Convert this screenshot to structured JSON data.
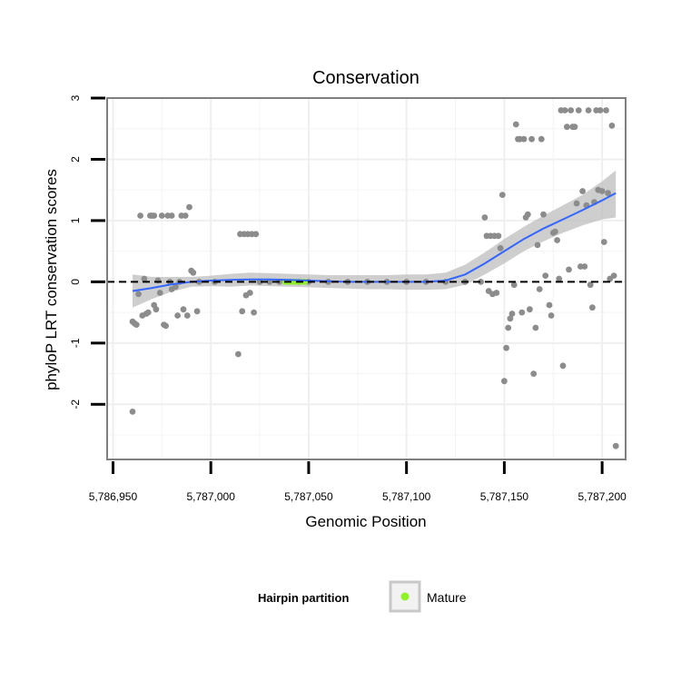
{
  "chart_data": {
    "type": "scatter",
    "title": "Conservation",
    "xlabel": "Genomic Position",
    "ylabel": "phyloP LRT conservation scores",
    "xlim": [
      5786947,
      5787212
    ],
    "ylim": [
      -2.9,
      3.0
    ],
    "x_ticks": [
      {
        "value": 5786950,
        "label": "5,786,950"
      },
      {
        "value": 5787000,
        "label": "5,787,000"
      },
      {
        "value": 5787050,
        "label": "5,787,050"
      },
      {
        "value": 5787100,
        "label": "5,787,100"
      },
      {
        "value": 5787150,
        "label": "5,787,150"
      },
      {
        "value": 5787200,
        "label": "5,787,200"
      }
    ],
    "y_ticks": [
      {
        "value": 3,
        "label": "3"
      },
      {
        "value": 2,
        "label": "2"
      },
      {
        "value": 1,
        "label": "1"
      },
      {
        "value": 0,
        "label": "0"
      },
      {
        "value": -1,
        "label": "-1"
      },
      {
        "value": -2,
        "label": "-2"
      }
    ],
    "reference_line": {
      "y": 0,
      "style": "dashed"
    },
    "points": [
      [
        5786960,
        -2.12
      ],
      [
        5786960,
        -0.65
      ],
      [
        5786961,
        -0.68
      ],
      [
        5786962,
        -0.7
      ],
      [
        5786963,
        -0.2
      ],
      [
        5786964,
        1.08
      ],
      [
        5786965,
        -0.55
      ],
      [
        5786966,
        0.05
      ],
      [
        5786967,
        -0.52
      ],
      [
        5786968,
        -0.5
      ],
      [
        5786969,
        1.08
      ],
      [
        5786970,
        1.08
      ],
      [
        5786971,
        -0.38
      ],
      [
        5786971,
        1.08
      ],
      [
        5786972,
        -0.45
      ],
      [
        5786973,
        0.02
      ],
      [
        5786974,
        -0.18
      ],
      [
        5786975,
        1.08
      ],
      [
        5786976,
        -0.7
      ],
      [
        5786977,
        -0.72
      ],
      [
        5786978,
        1.08
      ],
      [
        5786979,
        0.0
      ],
      [
        5786980,
        -0.12
      ],
      [
        5786980,
        1.08
      ],
      [
        5786982,
        -0.08
      ],
      [
        5786983,
        -0.55
      ],
      [
        5786984,
        0.0
      ],
      [
        5786985,
        1.08
      ],
      [
        5786986,
        -0.45
      ],
      [
        5786987,
        1.08
      ],
      [
        5786988,
        -0.55
      ],
      [
        5786989,
        1.22
      ],
      [
        5786990,
        0.18
      ],
      [
        5786991,
        0.15
      ],
      [
        5786993,
        -0.48
      ],
      [
        5786994,
        0.0
      ],
      [
        5787002,
        0.0
      ],
      [
        5787014,
        -1.18
      ],
      [
        5787015,
        0.78
      ],
      [
        5787016,
        -0.48
      ],
      [
        5787017,
        0.78
      ],
      [
        5787018,
        -0.22
      ],
      [
        5787019,
        0.78
      ],
      [
        5787020,
        -0.18
      ],
      [
        5787021,
        0.78
      ],
      [
        5787022,
        -0.5
      ],
      [
        5787023,
        0.78
      ],
      [
        5787025,
        0.0
      ],
      [
        5787030,
        0.0
      ],
      [
        5787035,
        0.0
      ],
      [
        5787040,
        0.0
      ],
      [
        5787045,
        0.0
      ],
      [
        5787050,
        0.0
      ],
      [
        5787060,
        0.0
      ],
      [
        5787070,
        0.0
      ],
      [
        5787080,
        0.0
      ],
      [
        5787090,
        0.0
      ],
      [
        5787100,
        0.0
      ],
      [
        5787110,
        0.0
      ],
      [
        5787120,
        0.0
      ],
      [
        5787130,
        0.0
      ],
      [
        5787138,
        0.0
      ],
      [
        5787140,
        1.05
      ],
      [
        5787141,
        0.75
      ],
      [
        5787142,
        -0.15
      ],
      [
        5787143,
        0.75
      ],
      [
        5787144,
        -0.2
      ],
      [
        5787145,
        0.75
      ],
      [
        5787146,
        -0.18
      ],
      [
        5787147,
        0.75
      ],
      [
        5787148,
        0.55
      ],
      [
        5787149,
        1.42
      ],
      [
        5787150,
        -1.62
      ],
      [
        5787151,
        -1.08
      ],
      [
        5787152,
        -0.75
      ],
      [
        5787153,
        -0.6
      ],
      [
        5787154,
        -0.52
      ],
      [
        5787155,
        -0.05
      ],
      [
        5787156,
        2.57
      ],
      [
        5787157,
        2.33
      ],
      [
        5787158,
        2.33
      ],
      [
        5787159,
        -0.5
      ],
      [
        5787160,
        2.33
      ],
      [
        5787161,
        1.05
      ],
      [
        5787162,
        1.1
      ],
      [
        5787163,
        -0.45
      ],
      [
        5787164,
        2.33
      ],
      [
        5787165,
        -1.5
      ],
      [
        5787166,
        -0.75
      ],
      [
        5787167,
        0.6
      ],
      [
        5787168,
        -0.12
      ],
      [
        5787169,
        2.33
      ],
      [
        5787170,
        1.1
      ],
      [
        5787171,
        0.1
      ],
      [
        5787173,
        -0.38
      ],
      [
        5787174,
        -0.55
      ],
      [
        5787175,
        0.8
      ],
      [
        5787176,
        0.82
      ],
      [
        5787177,
        0.68
      ],
      [
        5787178,
        0.05
      ],
      [
        5787179,
        2.8
      ],
      [
        5787180,
        -1.37
      ],
      [
        5787181,
        2.8
      ],
      [
        5787182,
        2.53
      ],
      [
        5787183,
        0.2
      ],
      [
        5787184,
        2.8
      ],
      [
        5787185,
        2.53
      ],
      [
        5787186,
        2.53
      ],
      [
        5787187,
        1.28
      ],
      [
        5787188,
        2.8
      ],
      [
        5787189,
        0.25
      ],
      [
        5787190,
        1.48
      ],
      [
        5787191,
        0.25
      ],
      [
        5787192,
        1.25
      ],
      [
        5787193,
        2.8
      ],
      [
        5787194,
        -0.05
      ],
      [
        5787195,
        -0.42
      ],
      [
        5787196,
        1.3
      ],
      [
        5787197,
        2.8
      ],
      [
        5787198,
        1.5
      ],
      [
        5787199,
        2.8
      ],
      [
        5787200,
        1.48
      ],
      [
        5787201,
        0.65
      ],
      [
        5787202,
        2.8
      ],
      [
        5787203,
        1.45
      ],
      [
        5787204,
        0.05
      ],
      [
        5787205,
        2.55
      ],
      [
        5787206,
        0.1
      ],
      [
        5787207,
        -2.68
      ]
    ],
    "mature_points": [
      [
        5787038,
        0.0
      ],
      [
        5787040,
        0.0
      ],
      [
        5787042,
        0.0
      ],
      [
        5787044,
        0.0
      ],
      [
        5787046,
        0.0
      ],
      [
        5787048,
        0.0
      ]
    ],
    "smooth": {
      "x": [
        5786960,
        5786970,
        5786980,
        5786990,
        5787000,
        5787010,
        5787020,
        5787030,
        5787040,
        5787050,
        5787060,
        5787070,
        5787080,
        5787090,
        5787100,
        5787110,
        5787120,
        5787130,
        5787140,
        5787150,
        5787160,
        5787170,
        5787180,
        5787190,
        5787200,
        5787207
      ],
      "y": [
        -0.15,
        -0.1,
        -0.04,
        0.0,
        0.02,
        0.03,
        0.04,
        0.04,
        0.03,
        0.02,
        0.01,
        0.0,
        0.0,
        0.0,
        0.0,
        0.0,
        0.02,
        0.12,
        0.3,
        0.5,
        0.7,
        0.87,
        1.02,
        1.17,
        1.33,
        1.45
      ],
      "lower": [
        -0.42,
        -0.28,
        -0.16,
        -0.08,
        -0.07,
        -0.08,
        -0.06,
        -0.07,
        -0.08,
        -0.09,
        -0.1,
        -0.11,
        -0.12,
        -0.12,
        -0.13,
        -0.13,
        -0.12,
        -0.05,
        0.12,
        0.3,
        0.5,
        0.66,
        0.8,
        0.92,
        1.02,
        1.05
      ],
      "upper": [
        0.12,
        0.08,
        0.08,
        0.08,
        0.1,
        0.13,
        0.15,
        0.14,
        0.13,
        0.12,
        0.11,
        0.11,
        0.11,
        0.11,
        0.12,
        0.12,
        0.15,
        0.28,
        0.48,
        0.7,
        0.9,
        1.08,
        1.25,
        1.42,
        1.64,
        1.82
      ]
    },
    "legend": {
      "title": "Hairpin partition",
      "entries": [
        {
          "label": "Mature",
          "color": "#8ef227"
        }
      ]
    },
    "colors": {
      "points": "#8c8c8c",
      "smooth_line": "#3366ff",
      "ribbon": "#bdbdbd",
      "mature": "#8ef227"
    }
  }
}
